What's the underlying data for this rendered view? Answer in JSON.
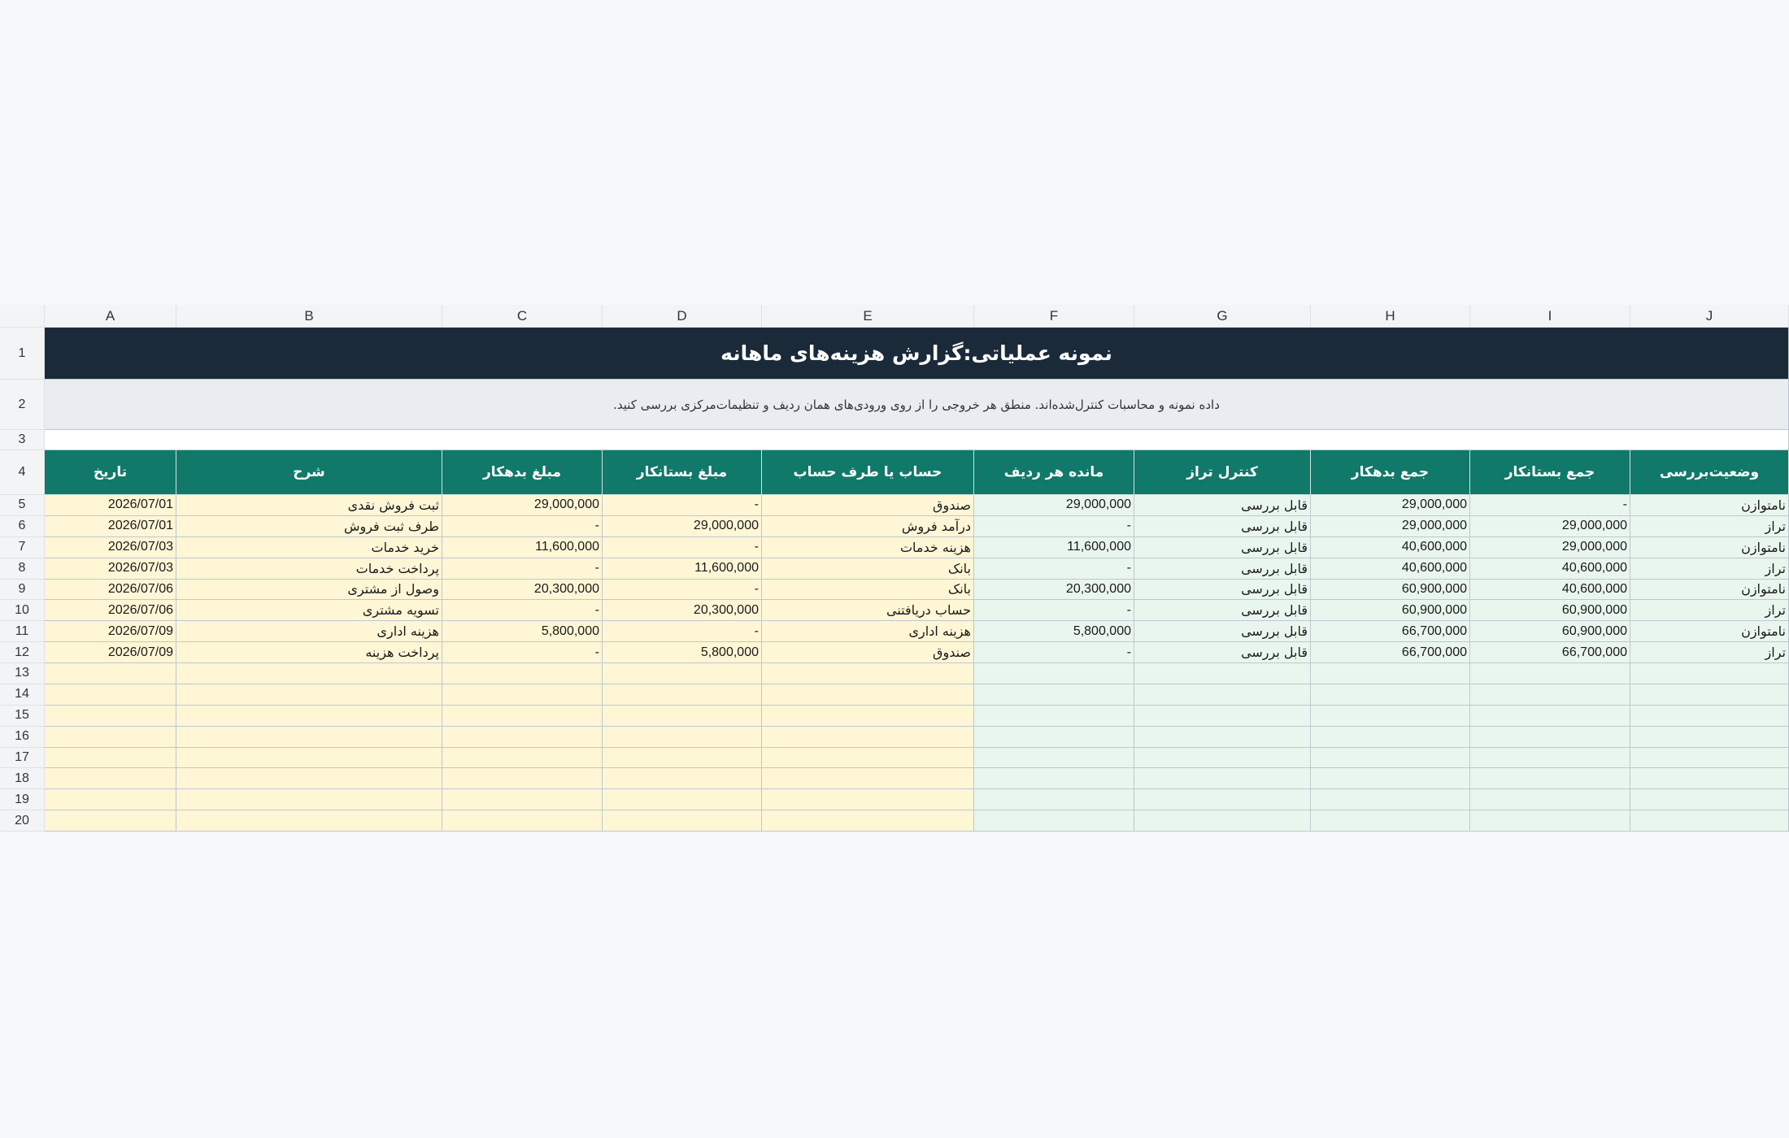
{
  "column_letters": [
    "A",
    "B",
    "C",
    "D",
    "E",
    "F",
    "G",
    "H",
    "I",
    "J"
  ],
  "row_numbers": [
    1,
    2,
    3,
    4,
    5,
    6,
    7,
    8,
    9,
    10,
    11,
    12,
    13,
    14,
    15,
    16,
    17,
    18,
    19,
    20
  ],
  "title": "نمونه عملیاتی:گزارش هزینه‌های ماهانه",
  "subtitle": "داده نمونه و محاسبات کنترل‌شده‌اند. منطق هر خروجی را از روی ورودی‌های همان ردیف و تنظیمات‌مرکزی بررسی کنید.",
  "table": {
    "headers": [
      "تاریخ",
      "شرح",
      "مبلغ بدهکار",
      "مبلغ بستانکار",
      "حساب یا طرف حساب",
      "مانده هر ردیف",
      "کنترل تراز",
      "جمع بدهکار",
      "جمع بستانکار",
      "وضعیت‌بررسی"
    ],
    "rows": [
      [
        "2026/07/01",
        "ثبت فروش نقدی",
        "29,000,000",
        "-",
        "صندوق",
        "29,000,000",
        "قابل بررسی",
        "29,000,000",
        "-",
        "نامتوازن"
      ],
      [
        "2026/07/01",
        "طرف ثبت فروش",
        "-",
        "29,000,000",
        "درآمد فروش",
        "-",
        "قابل بررسی",
        "29,000,000",
        "29,000,000",
        "تراز"
      ],
      [
        "2026/07/03",
        "خرید خدمات",
        "11,600,000",
        "-",
        "هزینه خدمات",
        "11,600,000",
        "قابل بررسی",
        "40,600,000",
        "29,000,000",
        "نامتوازن"
      ],
      [
        "2026/07/03",
        "پرداخت خدمات",
        "-",
        "11,600,000",
        "بانک",
        "-",
        "قابل بررسی",
        "40,600,000",
        "40,600,000",
        "تراز"
      ],
      [
        "2026/07/06",
        "وصول از مشتری",
        "20,300,000",
        "-",
        "بانک",
        "20,300,000",
        "قابل بررسی",
        "60,900,000",
        "40,600,000",
        "نامتوازن"
      ],
      [
        "2026/07/06",
        "تسویه مشتری",
        "-",
        "20,300,000",
        "حساب دریافتنی",
        "-",
        "قابل بررسی",
        "60,900,000",
        "60,900,000",
        "تراز"
      ],
      [
        "2026/07/09",
        "هزینه اداری",
        "5,800,000",
        "-",
        "هزینه اداری",
        "5,800,000",
        "قابل بررسی",
        "66,700,000",
        "60,900,000",
        "نامتوازن"
      ],
      [
        "2026/07/09",
        "پرداخت هزینه",
        "-",
        "5,800,000",
        "صندوق",
        "-",
        "قابل بررسی",
        "66,700,000",
        "66,700,000",
        "تراز"
      ]
    ]
  }
}
